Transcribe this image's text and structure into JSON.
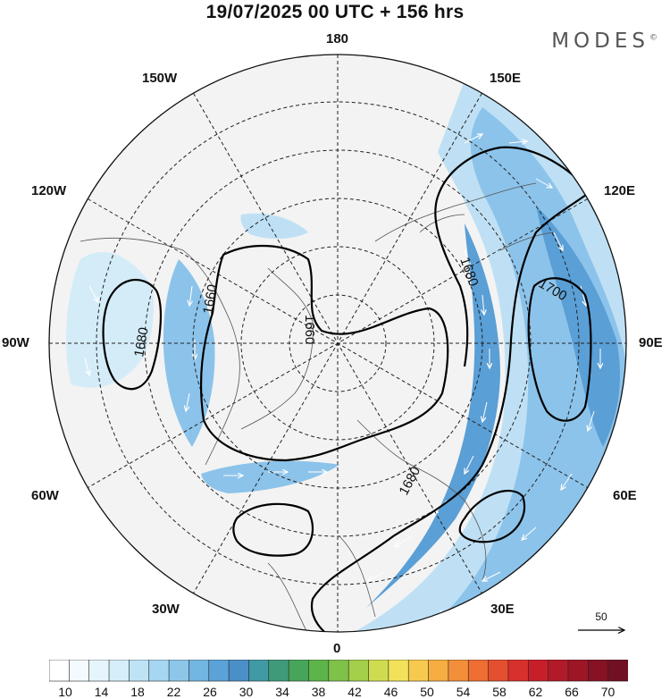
{
  "title": "19/07/2025  00 UTC  + 156 hrs",
  "brand": "MODES",
  "brand_mark": "©",
  "longitude_labels": {
    "top": "180",
    "top_left": "150W",
    "top_right": "150E",
    "upper_left": "120W",
    "upper_right": "120E",
    "left": "90W",
    "right": "90E",
    "lower_left": "60W",
    "lower_right": "60E",
    "bottom_left": "30W",
    "bottom_right": "30E",
    "bottom": "0"
  },
  "contour_labels": [
    "1660",
    "1660",
    "1680",
    "1680",
    "1680",
    "1700"
  ],
  "reference_vector": {
    "value": "50"
  },
  "colorbar": {
    "tick_labels": [
      "10",
      "14",
      "18",
      "22",
      "26",
      "30",
      "34",
      "38",
      "42",
      "46",
      "50",
      "54",
      "58",
      "62",
      "66",
      "70"
    ],
    "colors": [
      "#ffffff",
      "#f4fbfe",
      "#e6f5fc",
      "#d4eefa",
      "#bfe3f6",
      "#a6d6f1",
      "#8cc7ea",
      "#72b6e2",
      "#5aa2d8",
      "#4a8fc8",
      "#3f9aa5",
      "#3f9a7a",
      "#46a55a",
      "#5db54a",
      "#7ec24a",
      "#a4cf4a",
      "#cfdc50",
      "#f1e25a",
      "#f7c94e",
      "#f6ad42",
      "#f38f3a",
      "#ee6e34",
      "#e44f30",
      "#d8302c",
      "#c71f2a",
      "#b11a28",
      "#9c1626",
      "#861224",
      "#711022"
    ]
  },
  "colors": {
    "land": "#f3f3f3",
    "jet_light": "#bfe0f4",
    "jet_mid": "#8cc3ea",
    "jet_strong": "#5a9fd6",
    "contour": "#000000",
    "grid": "#222222"
  }
}
